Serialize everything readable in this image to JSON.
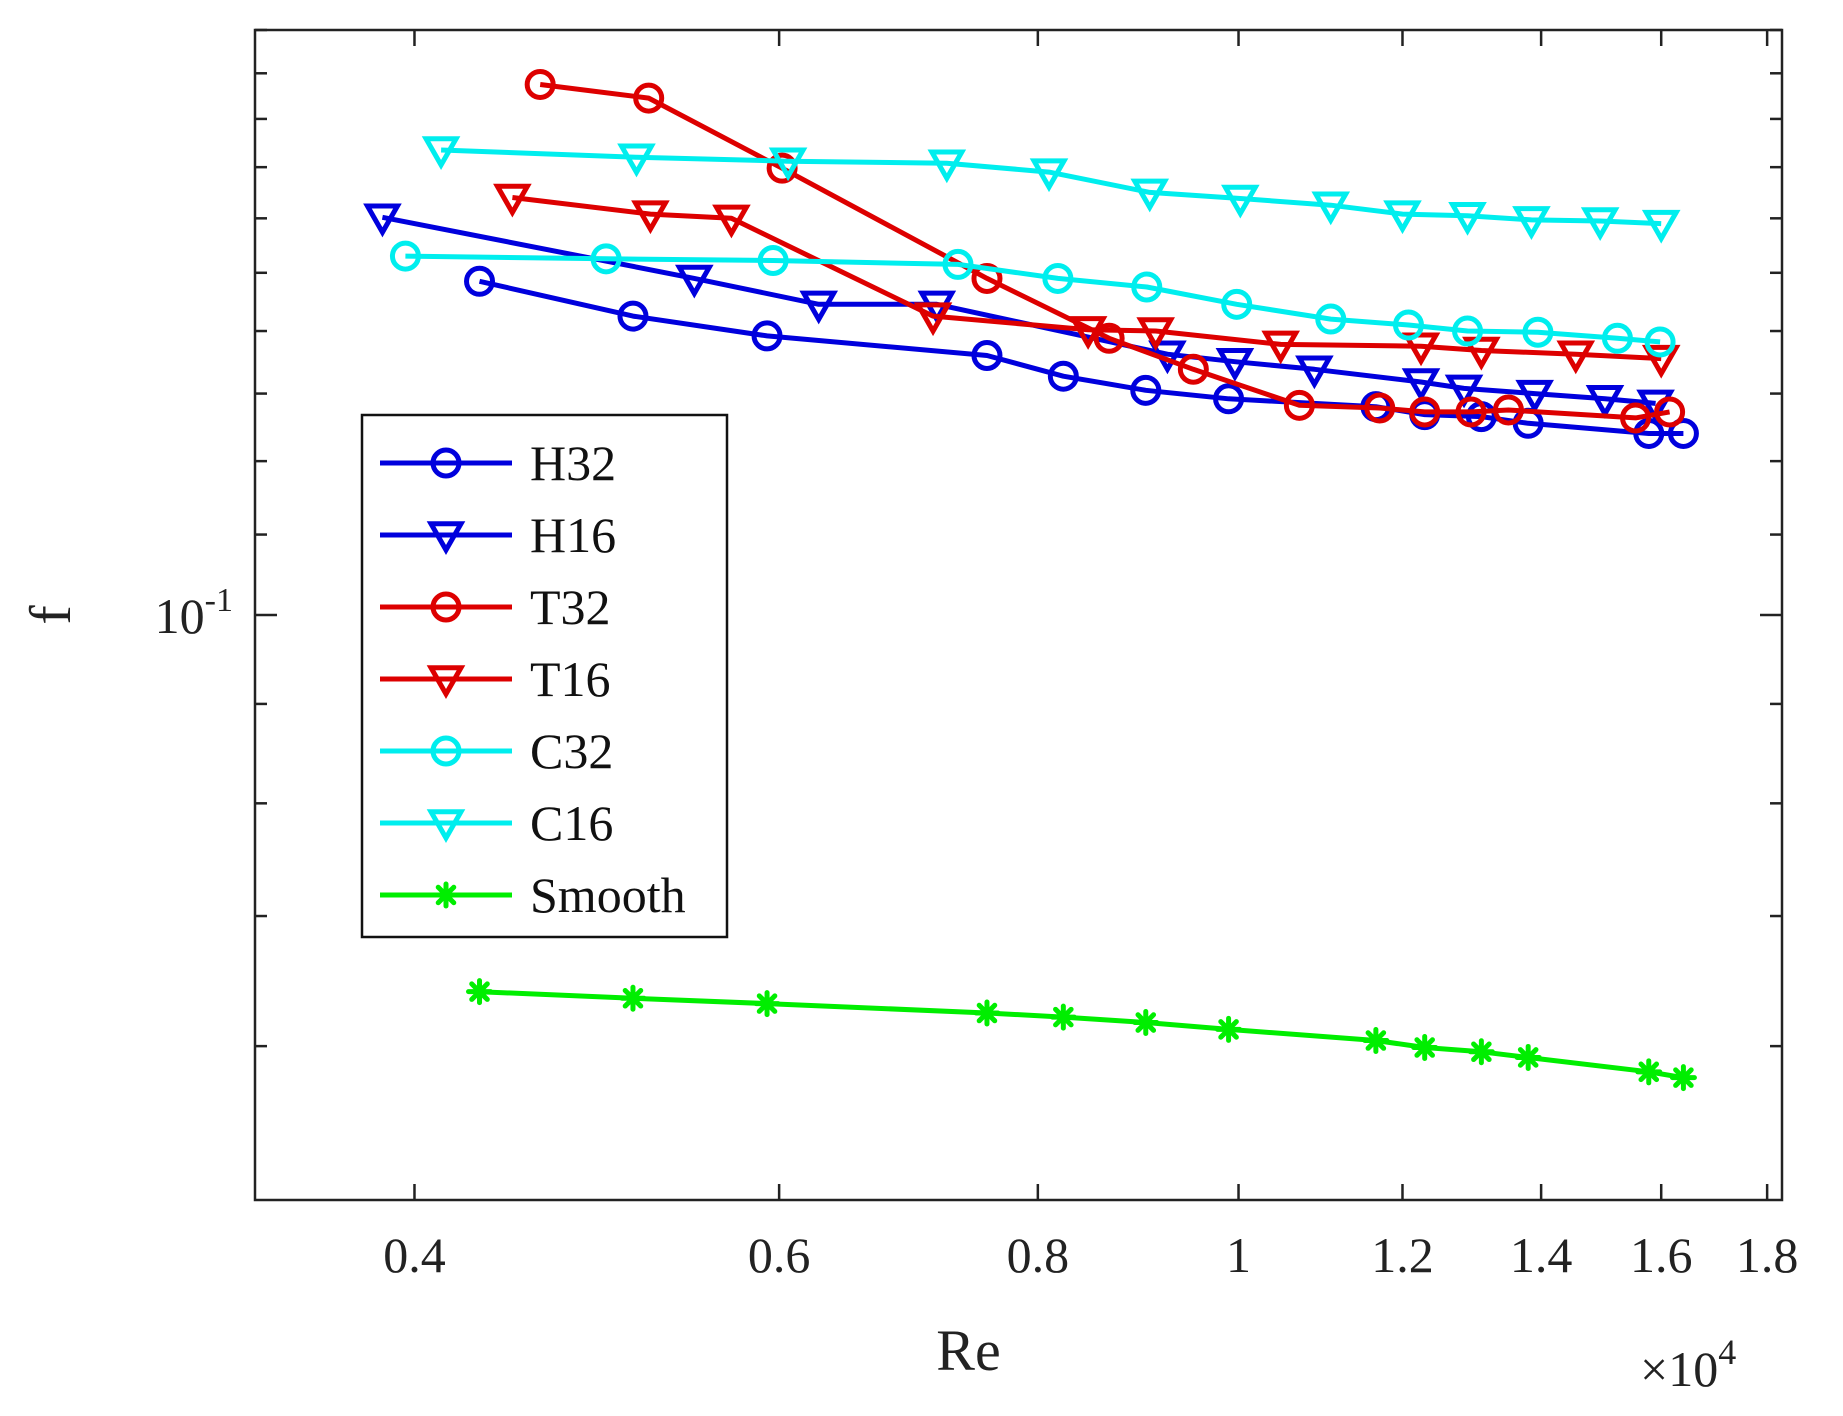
{
  "chart_data": {
    "type": "line",
    "xlabel": "Re",
    "ylabel": "f",
    "x_multiplier_label": "×10",
    "x_multiplier_exponent": "4",
    "x_scale": "log",
    "y_scale": "log",
    "xlim": [
      3350,
      18300
    ],
    "ylim": [
      0.05,
      0.2
    ],
    "x_ticks": [
      {
        "value": 4000,
        "label": "0.4"
      },
      {
        "value": 6000,
        "label": "0.6"
      },
      {
        "value": 8000,
        "label": "0.8"
      },
      {
        "value": 10000,
        "label": "1"
      },
      {
        "value": 12000,
        "label": "1.2"
      },
      {
        "value": 14000,
        "label": "1.4"
      },
      {
        "value": 16000,
        "label": "1.6"
      },
      {
        "value": 18000,
        "label": "1.8"
      }
    ],
    "y_major_tick": {
      "value": 0.1,
      "base": "10",
      "exponent": "-1"
    },
    "y_minor_ticks": [
      0.06,
      0.07,
      0.08,
      0.09,
      0.2
    ],
    "y_minor_ticks_above": [
      0.11,
      0.12,
      0.13,
      0.14,
      0.15,
      0.16,
      0.17,
      0.18,
      0.19
    ],
    "legend": {
      "position": "middle-left"
    },
    "series": [
      {
        "name": "H32",
        "color": "#0000dd",
        "marker": "circle",
        "x": [
          4300,
          5100,
          5920,
          7560,
          8230,
          9020,
          9890,
          11650,
          12300,
          13100,
          13800,
          15780,
          16400
        ],
        "y": [
          0.1485,
          0.1425,
          0.1392,
          0.136,
          0.1327,
          0.1305,
          0.1292,
          0.128,
          0.1268,
          0.1265,
          0.1255,
          0.124,
          0.124
        ]
      },
      {
        "name": "H16",
        "color": "#0000dd",
        "marker": "triangle-down",
        "x": [
          3860,
          5460,
          6270,
          7150,
          9240,
          9960,
          10880,
          12250,
          12850,
          13900,
          15030,
          15900
        ],
        "y": [
          0.1602,
          0.149,
          0.1445,
          0.1445,
          0.1362,
          0.135,
          0.1338,
          0.1318,
          0.1308,
          0.13,
          0.1292,
          0.1285
        ]
      },
      {
        "name": "T32",
        "color": "#dd0000",
        "marker": "circle",
        "x": [
          4600,
          5190,
          6020,
          7560,
          8660,
          9510,
          10700,
          11700,
          12300,
          12950,
          13500,
          15550,
          16150
        ],
        "y": [
          0.1875,
          0.1845,
          0.1698,
          0.149,
          0.1388,
          0.1338,
          0.1282,
          0.1278,
          0.1272,
          0.1272,
          0.1275,
          0.1263,
          0.1272
        ]
      },
      {
        "name": "T16",
        "color": "#dd0000",
        "marker": "triangle-down",
        "x": [
          4460,
          5200,
          5690,
          7120,
          8460,
          9120,
          10480,
          12250,
          13100,
          14550,
          16000
        ],
        "y": [
          0.164,
          0.1608,
          0.16,
          0.1425,
          0.1402,
          0.14,
          0.1378,
          0.1375,
          0.1368,
          0.1362,
          0.1355
        ]
      },
      {
        "name": "C32",
        "color": "#00eeee",
        "marker": "circle",
        "x": [
          3960,
          4950,
          5960,
          7320,
          8180,
          9030,
          9980,
          11080,
          12080,
          12900,
          13950,
          15240,
          15980
        ],
        "y": [
          0.153,
          0.1525,
          0.1522,
          0.1515,
          0.149,
          0.1475,
          0.1445,
          0.142,
          0.141,
          0.14,
          0.1398,
          0.1388,
          0.1382
        ]
      },
      {
        "name": "C16",
        "color": "#00eeee",
        "marker": "triangle-down",
        "x": [
          4120,
          5120,
          6060,
          7230,
          8100,
          9060,
          10020,
          11080,
          12000,
          12900,
          13850,
          14950,
          16000
        ],
        "y": [
          0.1735,
          0.172,
          0.1712,
          0.1708,
          0.169,
          0.165,
          0.1638,
          0.1625,
          0.1608,
          0.1605,
          0.1597,
          0.1595,
          0.159
        ]
      },
      {
        "name": "Smooth",
        "color": "#00ee00",
        "marker": "asterisk",
        "x": [
          4300,
          5100,
          5920,
          7560,
          8230,
          9020,
          9890,
          11650,
          12300,
          13100,
          13800,
          15780,
          16400
        ],
        "y": [
          0.064,
          0.0635,
          0.0631,
          0.0624,
          0.0621,
          0.0617,
          0.0612,
          0.0604,
          0.0599,
          0.0596,
          0.0592,
          0.0582,
          0.0578
        ]
      }
    ]
  }
}
